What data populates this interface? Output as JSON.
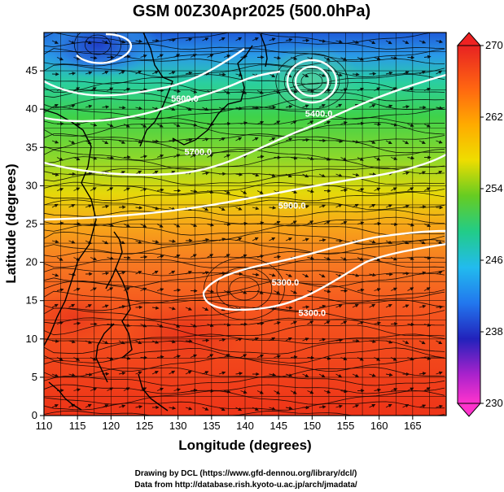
{
  "chart_data": {
    "type": "heatmap",
    "title": "GSM 00Z30Apr2025 (500.0hPa)",
    "xlabel": "Longitude (degrees)",
    "ylabel": "Latitude  (degrees)",
    "xlim": [
      110,
      170
    ],
    "ylim": [
      0,
      50
    ],
    "x_ticks": [
      110,
      115,
      120,
      125,
      130,
      135,
      140,
      145,
      150,
      155,
      160,
      165
    ],
    "y_ticks": [
      0,
      5,
      10,
      15,
      20,
      25,
      30,
      35,
      40,
      45
    ],
    "colorbar": {
      "min": 230,
      "max": 270,
      "tick_labels": [
        270,
        262,
        254,
        246,
        238,
        230
      ],
      "colors": [
        "#ff33cc",
        "#aa22cc",
        "#2222bb",
        "#2277ee",
        "#22bbee",
        "#22dd88",
        "#44cc22",
        "#99dd22",
        "#eedd00",
        "#ffaa00",
        "#ff6611",
        "#ee2222"
      ]
    },
    "contours": [
      {
        "label": "5600.0",
        "lon": 131,
        "lat": 41
      },
      {
        "label": "5700.0",
        "lon": 133,
        "lat": 34
      },
      {
        "label": "5400.0",
        "lon": 151,
        "lat": 39
      },
      {
        "label": "5900.0",
        "lon": 147,
        "lat": 27
      },
      {
        "label": "5300.0",
        "lon": 146,
        "lat": 17
      },
      {
        "label": "5300.0",
        "lon": 150,
        "lat": 13
      }
    ],
    "footer_lines": [
      "Drawing by DCL (https://www.gfd-dennou.org/library/dcl/)",
      "Data from http://database.rish.kyoto-u.ac.jp/arch/jmadata/"
    ]
  }
}
